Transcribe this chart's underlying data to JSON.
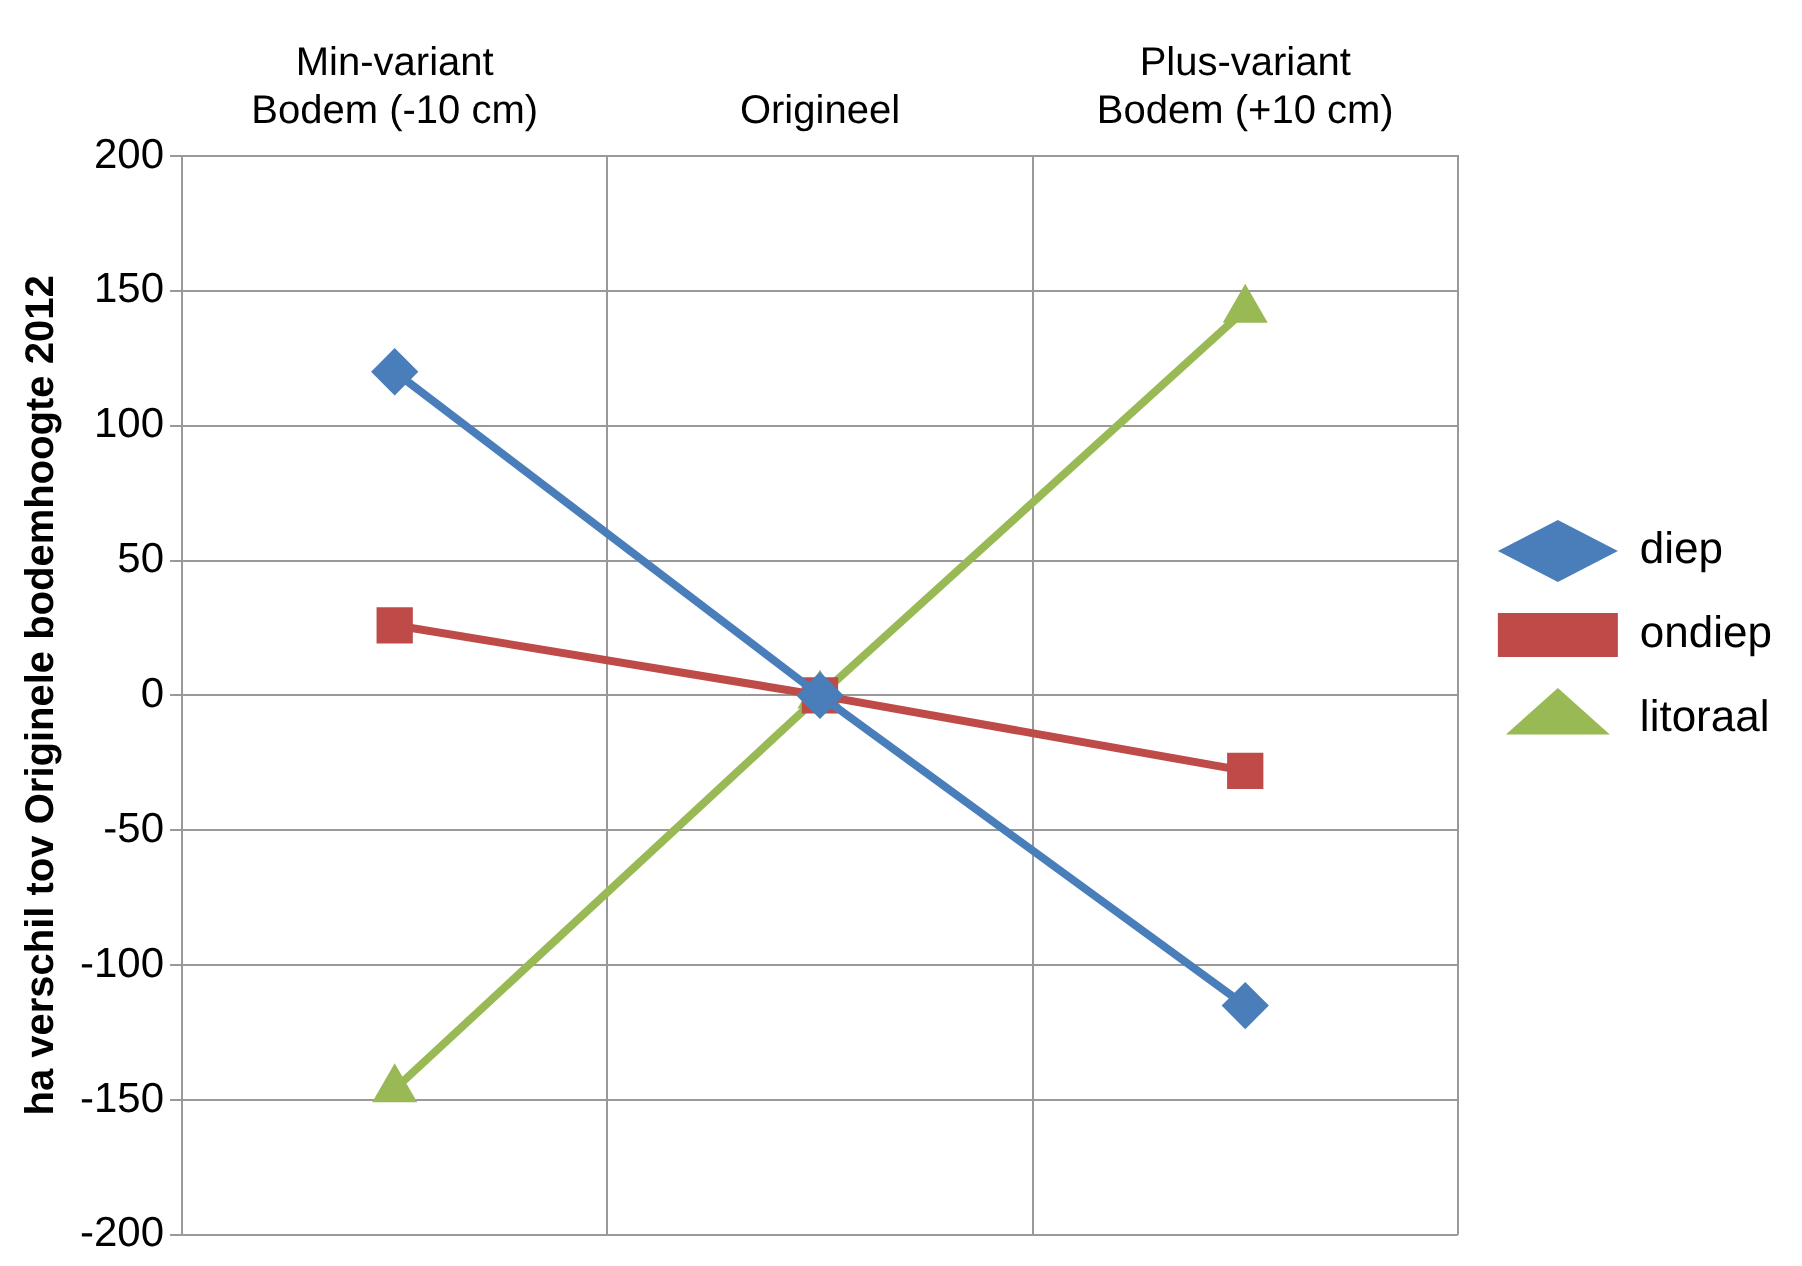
{
  "chart_data": {
    "type": "line",
    "ylabel": "ha verschil tov Originele bodemhoogte 2012",
    "categories": [
      "Min-variant\nBodem (-10 cm)",
      "Origineel",
      "Plus-variant\nBodem (+10 cm)"
    ],
    "series": [
      {
        "name": "diep",
        "color": "#4a7ebb",
        "marker": "diamond",
        "values": [
          120,
          0,
          -115
        ]
      },
      {
        "name": "ondiep",
        "color": "#be4b48",
        "marker": "square",
        "values": [
          26,
          0,
          -28
        ]
      },
      {
        "name": "litoraal",
        "color": "#98b954",
        "marker": "triangle",
        "values": [
          -146,
          0,
          143
        ]
      }
    ],
    "ylim": [
      -200,
      200
    ],
    "yticks": [
      -200,
      -150,
      -100,
      -50,
      0,
      50,
      100,
      150,
      200
    ],
    "grid": true,
    "legend": "right",
    "line_style": "solid"
  }
}
